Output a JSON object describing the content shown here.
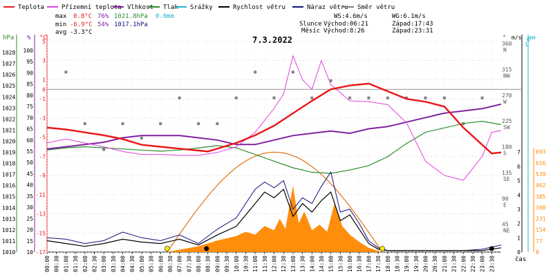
{
  "legend": [
    {
      "label": "Teplota",
      "color": "#e8191b"
    },
    {
      "label": "Přízemní teplota",
      "color": "#e040e0"
    },
    {
      "label": "Vlhkost",
      "color": "#8020a0"
    },
    {
      "label": "Tlak",
      "color": "#2e8b2e"
    },
    {
      "label": "Srážky",
      "color": "#20b0d0"
    },
    {
      "label": "Rychlost větru",
      "color": "#000000"
    },
    {
      "label": "Náraz větru",
      "color": "#10107a"
    },
    {
      "label": "Směr větru",
      "color": "#808080"
    }
  ],
  "stats": {
    "max": {
      "label": "max",
      "temp": "0.8°C",
      "hum": "76%",
      "press": "1021.8hPa",
      "rain": "0.0mm"
    },
    "min": {
      "label": "min",
      "temp": "-6.9°C",
      "hum": "54%",
      "press": "1017.1hPa"
    },
    "avg": {
      "label": "avg",
      "temp": "-3.3°C"
    }
  },
  "wind_info": {
    "ws": "WS:4.6m/s",
    "wg": "WG:6.1m/s"
  },
  "sun_info": {
    "label": "Slunce",
    "rise": "Východ:06:21",
    "set": "Západ:17:43"
  },
  "moon_info": {
    "label": "Měsíc",
    "rise": "Východ:8:26",
    "set": "Západ:23:31"
  },
  "colors": {
    "temp": "#e8191b",
    "ground": "#e040e0",
    "hum": "#8020a0",
    "press": "#2e8b2e",
    "rain": "#20b0d0",
    "wind": "#000000",
    "gust": "#10107a",
    "dir": "#808080",
    "solar": "#ff8800",
    "sunline": "#e07010"
  },
  "chart_data": {
    "type": "line",
    "title": "7.3.2022",
    "xlabel": "čas",
    "x_ticks": [
      "00:00",
      "00:30",
      "01:00",
      "01:30",
      "02:00",
      "02:30",
      "03:00",
      "03:30",
      "04:00",
      "04:30",
      "05:00",
      "05:30",
      "06:00",
      "06:30",
      "07:00",
      "07:30",
      "08:00",
      "08:30",
      "09:00",
      "09:30",
      "10:00",
      "10:30",
      "11:00",
      "11:30",
      "12:00",
      "12:30",
      "13:00",
      "13:30",
      "14:00",
      "14:30",
      "15:00",
      "15:30",
      "16:00",
      "16:30",
      "17:00",
      "17:30",
      "18:00",
      "18:30",
      "19:00",
      "19:30",
      "20:00",
      "20:30",
      "21:00",
      "21:30",
      "22:00",
      "22:30",
      "23:00",
      "23:30"
    ],
    "axes": {
      "pressure": {
        "label": "hPa",
        "range": [
          1010,
          1029
        ],
        "ticks": [
          "1010",
          "1011",
          "1012",
          "1013",
          "1014",
          "1015",
          "1016",
          "1017",
          "1018",
          "1019",
          "1020",
          "1021",
          "1022",
          "1023",
          "1024",
          "1025",
          "1026",
          "1027",
          "1028"
        ]
      },
      "humidity": {
        "label": "%",
        "range": [
          10,
          104
        ],
        "ticks": [
          "10",
          "15",
          "20",
          "25",
          "30",
          "35",
          "40",
          "45",
          "50",
          "55",
          "60",
          "65",
          "70",
          "75",
          "80",
          "85",
          "90",
          "95",
          "100"
        ]
      },
      "temperature": {
        "label": "°C",
        "range": [
          -17,
          5
        ],
        "ticks": [
          "-17",
          "-15",
          "-13",
          "-11",
          "-9",
          "-7",
          "-5",
          "-3",
          "-1",
          "1",
          "3",
          "5"
        ],
        "zero_label": "0"
      },
      "direction": {
        "label": "°",
        "ticks": [
          {
            "deg": "45",
            "dir": "NE"
          },
          {
            "deg": "90",
            "dir": "E"
          },
          {
            "deg": "135",
            "dir": "SE"
          },
          {
            "deg": "180",
            "dir": "S"
          },
          {
            "deg": "225",
            "dir": "SW"
          },
          {
            "deg": "270",
            "dir": "W"
          },
          {
            "deg": "315",
            "dir": "NW"
          },
          {
            "deg": "360",
            "dir": "N"
          }
        ]
      },
      "wind": {
        "label": "m/s",
        "ticks": [
          "0",
          "1",
          "2",
          "3",
          "4",
          "5",
          "6",
          "7"
        ]
      },
      "rain": {
        "label": "mm",
        "ticks": [
          "0",
          "1"
        ]
      },
      "solar": {
        "ticks": [
          "0",
          "77",
          "154",
          "231",
          "308",
          "385",
          "462",
          "539",
          "616",
          "693"
        ]
      }
    },
    "series": [
      {
        "name": "Teplota",
        "unit": "°C",
        "x": [
          0,
          1,
          2,
          3,
          4,
          5,
          6,
          7,
          8,
          8.5,
          9,
          10,
          11,
          12,
          13,
          14,
          15,
          16,
          17,
          18,
          19,
          20,
          21,
          22,
          23,
          23.5,
          24
        ],
        "values": [
          -4,
          -4.2,
          -4.5,
          -4.8,
          -5.2,
          -5.8,
          -6.0,
          -6.2,
          -6.4,
          -6.5,
          -6.2,
          -5.6,
          -4.8,
          -3.8,
          -2.5,
          -1.2,
          0.0,
          0.4,
          0.6,
          -0.2,
          -1.0,
          -1.3,
          -1.8,
          -4.0,
          -5.8,
          -6.7,
          -6.6
        ]
      },
      {
        "name": "Přízemní teplota",
        "unit": "°C",
        "x": [
          0,
          1,
          2,
          3,
          4,
          5,
          6,
          7,
          8,
          9,
          10,
          11,
          12,
          12.5,
          13,
          13.5,
          14,
          14.5,
          15,
          16,
          17,
          18,
          19,
          20,
          21,
          22,
          23,
          23.5,
          24
        ],
        "values": [
          -5.6,
          -5.2,
          -5.6,
          -6.0,
          -6.5,
          -6.8,
          -6.8,
          -6.9,
          -6.9,
          -6.6,
          -6.0,
          -4.5,
          -2.0,
          -0.5,
          3.5,
          1.0,
          0.0,
          3.0,
          0.5,
          -1.2,
          -1.3,
          -1.6,
          -3.5,
          -7.5,
          -9.0,
          -9.5,
          -7.0,
          -4.5,
          -4.3
        ]
      },
      {
        "name": "Vlhkost",
        "unit": "%",
        "x": [
          0,
          1,
          2,
          3,
          4,
          5,
          6,
          7,
          8,
          9,
          10,
          11,
          12,
          13,
          14,
          15,
          16,
          17,
          18,
          19,
          20,
          21,
          22,
          23,
          24
        ],
        "values": [
          56,
          57,
          58,
          59,
          61,
          62,
          62,
          62,
          61,
          60,
          58,
          58,
          60,
          62,
          63,
          64,
          63,
          65,
          66,
          68,
          70,
          72,
          73,
          74,
          76
        ]
      },
      {
        "name": "Tlak",
        "unit": "hPa",
        "x": [
          0,
          1,
          2,
          3,
          4,
          5,
          6,
          7,
          8,
          9,
          10,
          11,
          12,
          13,
          14,
          15,
          16,
          17,
          18,
          19,
          20,
          21,
          22,
          23,
          24
        ],
        "values": [
          1019.2,
          1019.4,
          1019.5,
          1019.4,
          1019.3,
          1019.2,
          1019.1,
          1019.2,
          1019.4,
          1019.6,
          1019.4,
          1018.8,
          1018.2,
          1017.6,
          1017.2,
          1017.1,
          1017.4,
          1017.8,
          1018.6,
          1019.8,
          1020.8,
          1021.2,
          1021.6,
          1021.8,
          1021.5
        ]
      },
      {
        "name": "Rychlost větru",
        "unit": "m/s",
        "x": [
          0,
          1,
          2,
          3,
          4,
          5,
          6,
          7,
          8,
          9,
          10,
          11,
          11.5,
          12,
          12.5,
          13,
          13.5,
          14,
          14.5,
          15,
          15.5,
          16,
          16.5,
          17,
          17.5,
          18,
          19,
          20,
          21,
          22,
          23,
          24
        ],
        "values": [
          0.8,
          0.6,
          0.4,
          0.6,
          0.9,
          0.7,
          0.6,
          0.9,
          0.5,
          1.2,
          1.8,
          3.4,
          4.2,
          3.8,
          4.4,
          2.5,
          3.4,
          2.8,
          3.6,
          4.2,
          2.2,
          2.6,
          1.6,
          0.6,
          0.2,
          0.1,
          0.1,
          0.1,
          0.1,
          0.1,
          0.1,
          0.3
        ]
      },
      {
        "name": "Náraz větru",
        "unit": "m/s",
        "x": [
          0,
          1,
          2,
          3,
          4,
          5,
          6,
          7,
          8,
          9,
          10,
          11,
          11.5,
          12,
          12.5,
          13,
          13.5,
          14,
          14.5,
          15,
          15.5,
          16,
          16.5,
          17,
          17.5,
          18,
          19,
          20,
          21,
          22,
          23,
          24
        ],
        "values": [
          1.0,
          0.9,
          0.6,
          0.8,
          1.4,
          1.0,
          0.8,
          1.2,
          0.6,
          1.6,
          2.4,
          4.4,
          4.9,
          4.5,
          5.0,
          3.0,
          3.8,
          3.4,
          4.6,
          5.6,
          2.8,
          3.0,
          2.0,
          0.8,
          0.3,
          0.1,
          0.1,
          0.1,
          0.1,
          0.1,
          0.2,
          0.5
        ]
      },
      {
        "name": "Solar",
        "unit": "",
        "x": [
          6.3,
          8,
          9,
          10,
          10.5,
          11,
          11.5,
          12,
          12.3,
          12.6,
          13,
          13.3,
          13.6,
          14,
          14.4,
          14.8,
          15.2,
          15.6,
          16,
          16.5,
          17,
          17.7
        ],
        "values": [
          0,
          40,
          80,
          110,
          140,
          120,
          180,
          150,
          230,
          160,
          460,
          200,
          280,
          150,
          190,
          140,
          340,
          180,
          120,
          70,
          30,
          0
        ]
      },
      {
        "name": "Sun curve",
        "unit": "",
        "x": [
          6.35,
          8,
          10,
          12,
          14,
          16,
          17.72
        ],
        "values": [
          0,
          350,
          600,
          690,
          600,
          350,
          0
        ]
      }
    ],
    "wind_direction_samples": {
      "x": [
        1,
        2,
        3,
        4,
        5,
        6,
        7,
        8,
        9,
        10,
        11,
        12,
        13,
        14,
        15,
        16,
        17,
        18,
        19,
        20,
        21,
        22,
        23
      ],
      "deg": [
        315,
        225,
        180,
        225,
        200,
        225,
        270,
        225,
        225,
        270,
        315,
        270,
        315,
        270,
        300,
        270,
        270,
        270,
        270,
        270,
        270,
        225,
        270
      ]
    }
  }
}
